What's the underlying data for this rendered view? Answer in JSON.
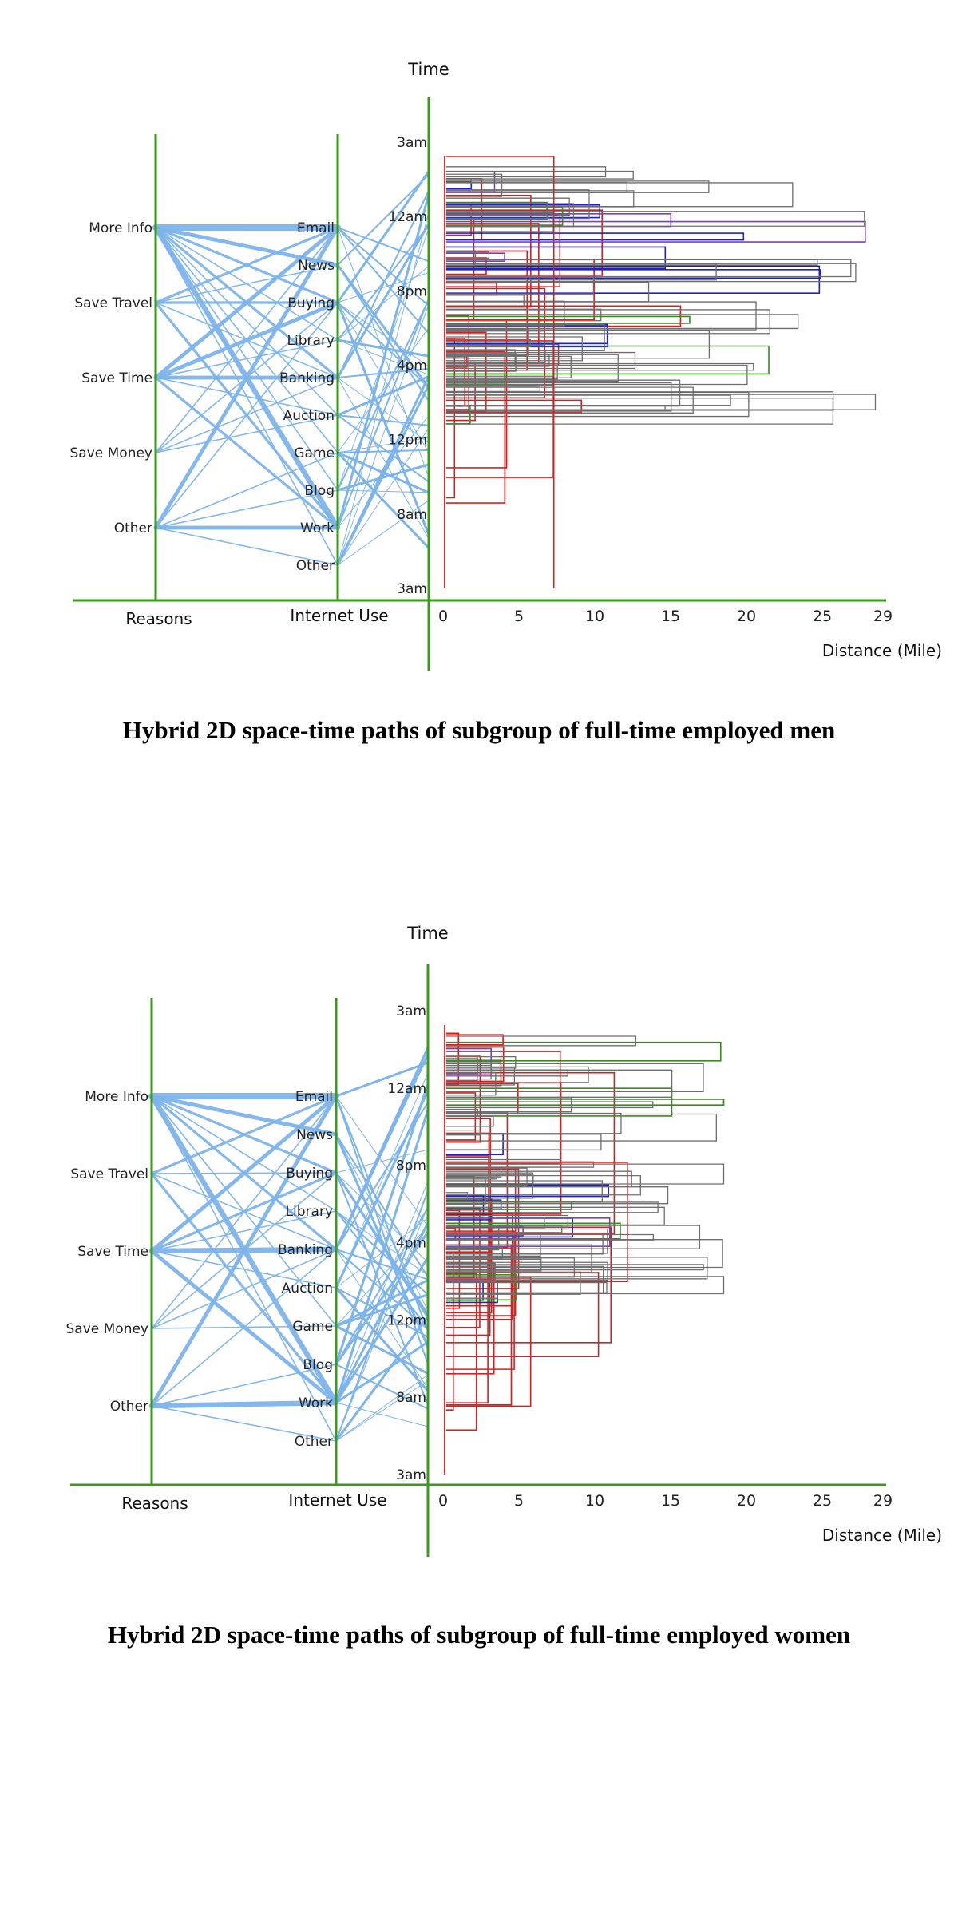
{
  "figures": [
    {
      "id": "men",
      "caption": "Hybrid 2D space-time paths of subgroup of full-time employed men"
    },
    {
      "id": "women",
      "caption": "Hybrid 2D space-time paths of subgroup of full-time employed women"
    }
  ],
  "colors": {
    "axis": "#3a9a1a",
    "link": "#7eb4ec",
    "path_gray": "#6e6e6e",
    "path_red": "#d42020",
    "path_blue": "#2020c8",
    "path_green": "#3a8a20",
    "path_purple": "#7a40c0"
  },
  "chart_data": [
    {
      "type": "parallel-coordinates-with-space-time-paths",
      "title": "Hybrid 2D space-time paths of subgroup of full-time employed men",
      "axes": {
        "reasons": {
          "label": "Reasons",
          "categories": [
            "More Info",
            "Save Travel",
            "Save Time",
            "Save Money",
            "Other"
          ]
        },
        "internet_use": {
          "label": "Internet Use",
          "categories": [
            "Email",
            "News",
            "Buying",
            "Library",
            "Banking",
            "Auction",
            "Game",
            "Blog",
            "Work",
            "Other"
          ]
        },
        "time": {
          "label": "Time",
          "ticks": [
            "3am",
            "12am",
            "8pm",
            "4pm",
            "12pm",
            "8am",
            "3am"
          ]
        },
        "distance": {
          "label": "Distance (Mile)",
          "ticks": [
            0,
            5,
            10,
            15,
            20,
            25,
            29
          ],
          "xlim": [
            0,
            29
          ]
        }
      },
      "links": [
        {
          "reason": "More Info",
          "use": "Email",
          "weight": 5
        },
        {
          "reason": "More Info",
          "use": "News",
          "weight": 3
        },
        {
          "reason": "More Info",
          "use": "Buying",
          "weight": 2
        },
        {
          "reason": "More Info",
          "use": "Library",
          "weight": 1
        },
        {
          "reason": "More Info",
          "use": "Banking",
          "weight": 2
        },
        {
          "reason": "More Info",
          "use": "Auction",
          "weight": 1
        },
        {
          "reason": "More Info",
          "use": "Game",
          "weight": 1
        },
        {
          "reason": "More Info",
          "use": "Blog",
          "weight": 1
        },
        {
          "reason": "More Info",
          "use": "Work",
          "weight": 4
        },
        {
          "reason": "More Info",
          "use": "Other",
          "weight": 1
        },
        {
          "reason": "Save Travel",
          "use": "Email",
          "weight": 2
        },
        {
          "reason": "Save Travel",
          "use": "Buying",
          "weight": 2
        },
        {
          "reason": "Save Travel",
          "use": "Banking",
          "weight": 1
        },
        {
          "reason": "Save Travel",
          "use": "Work",
          "weight": 2
        },
        {
          "reason": "Save Travel",
          "use": "News",
          "weight": 1
        },
        {
          "reason": "Save Time",
          "use": "Email",
          "weight": 3
        },
        {
          "reason": "Save Time",
          "use": "Buying",
          "weight": 3
        },
        {
          "reason": "Save Time",
          "use": "Banking",
          "weight": 3
        },
        {
          "reason": "Save Time",
          "use": "Library",
          "weight": 1
        },
        {
          "reason": "Save Time",
          "use": "Work",
          "weight": 2
        },
        {
          "reason": "Save Time",
          "use": "Auction",
          "weight": 1
        },
        {
          "reason": "Save Money",
          "use": "Buying",
          "weight": 1
        },
        {
          "reason": "Save Money",
          "use": "Auction",
          "weight": 1
        },
        {
          "reason": "Save Money",
          "use": "Email",
          "weight": 1
        },
        {
          "reason": "Save Money",
          "use": "Banking",
          "weight": 1
        },
        {
          "reason": "Other",
          "use": "Email",
          "weight": 3
        },
        {
          "reason": "Other",
          "use": "Work",
          "weight": 3
        },
        {
          "reason": "Other",
          "use": "Game",
          "weight": 1
        },
        {
          "reason": "Other",
          "use": "Buying",
          "weight": 1
        },
        {
          "reason": "Other",
          "use": "Other",
          "weight": 1
        },
        {
          "reason": "Other",
          "use": "Blog",
          "weight": 1
        }
      ],
      "paths": {
        "count": 95,
        "max_distance": 28.5,
        "seed": 11,
        "red_count": 24,
        "blue_count": 8,
        "green_count": 6,
        "purple_count": 4,
        "red_verticals": [
          0.1,
          7.3
        ]
      }
    },
    {
      "type": "parallel-coordinates-with-space-time-paths",
      "title": "Hybrid 2D space-time paths of subgroup of full-time employed women",
      "axes": {
        "reasons": {
          "label": "Reasons",
          "categories": [
            "More Info",
            "Save Travel",
            "Save Time",
            "Save Money",
            "Other"
          ]
        },
        "internet_use": {
          "label": "Internet Use",
          "categories": [
            "Email",
            "News",
            "Buying",
            "Library",
            "Banking",
            "Auction",
            "Game",
            "Blog",
            "Work",
            "Other"
          ]
        },
        "time": {
          "label": "Time",
          "ticks": [
            "3am",
            "12am",
            "8pm",
            "4pm",
            "12pm",
            "8am",
            "3am"
          ]
        },
        "distance": {
          "label": "Distance (Mile)",
          "ticks": [
            0,
            5,
            10,
            15,
            20,
            25,
            29
          ],
          "xlim": [
            0,
            29
          ]
        }
      },
      "links": [
        {
          "reason": "More Info",
          "use": "Email",
          "weight": 5
        },
        {
          "reason": "More Info",
          "use": "News",
          "weight": 3
        },
        {
          "reason": "More Info",
          "use": "Buying",
          "weight": 2
        },
        {
          "reason": "More Info",
          "use": "Banking",
          "weight": 2
        },
        {
          "reason": "More Info",
          "use": "Work",
          "weight": 4
        },
        {
          "reason": "More Info",
          "use": "Library",
          "weight": 1
        },
        {
          "reason": "More Info",
          "use": "Game",
          "weight": 1
        },
        {
          "reason": "More Info",
          "use": "Other",
          "weight": 1
        },
        {
          "reason": "Save Travel",
          "use": "Email",
          "weight": 2
        },
        {
          "reason": "Save Travel",
          "use": "Buying",
          "weight": 1
        },
        {
          "reason": "Save Travel",
          "use": "Banking",
          "weight": 1
        },
        {
          "reason": "Save Travel",
          "use": "Work",
          "weight": 2
        },
        {
          "reason": "Save Time",
          "use": "Email",
          "weight": 3
        },
        {
          "reason": "Save Time",
          "use": "Banking",
          "weight": 4
        },
        {
          "reason": "Save Time",
          "use": "Buying",
          "weight": 2
        },
        {
          "reason": "Save Time",
          "use": "Work",
          "weight": 3
        },
        {
          "reason": "Save Time",
          "use": "Library",
          "weight": 1
        },
        {
          "reason": "Save Time",
          "use": "Auction",
          "weight": 1
        },
        {
          "reason": "Save Money",
          "use": "Buying",
          "weight": 1
        },
        {
          "reason": "Save Money",
          "use": "Email",
          "weight": 1
        },
        {
          "reason": "Save Money",
          "use": "Game",
          "weight": 1
        },
        {
          "reason": "Save Money",
          "use": "Banking",
          "weight": 1
        },
        {
          "reason": "Other",
          "use": "Email",
          "weight": 3
        },
        {
          "reason": "Other",
          "use": "Work",
          "weight": 4
        },
        {
          "reason": "Other",
          "use": "Banking",
          "weight": 1
        },
        {
          "reason": "Other",
          "use": "Blog",
          "weight": 1
        },
        {
          "reason": "Other",
          "use": "Other",
          "weight": 1
        }
      ],
      "paths": {
        "count": 110,
        "max_distance": 18.5,
        "seed": 29,
        "red_count": 34,
        "blue_count": 8,
        "green_count": 6,
        "purple_count": 3,
        "red_verticals": [
          0.1
        ]
      }
    }
  ]
}
